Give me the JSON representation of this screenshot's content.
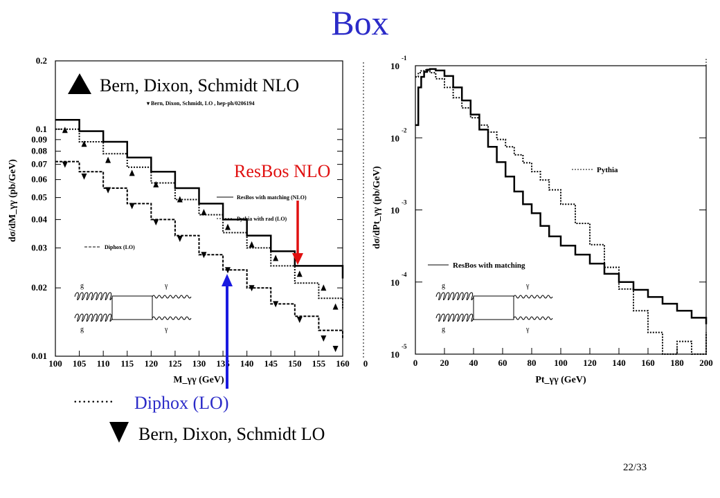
{
  "slide": {
    "title": "Box",
    "page_number": "22/33"
  },
  "annotations": {
    "bds_nlo": "Bern, Dixon, Schmidt NLO",
    "bds_lo": "Bern, Dixon, Schmidt LO",
    "resbos_nlo": "ResBos NLO",
    "diphox_lo": "Diphox (LO)",
    "dotted_marker": ".........",
    "colors": {
      "title": "#2b2bc8",
      "red_arrow": "#e01010",
      "blue_arrow": "#1a1ae0"
    }
  },
  "feynman_diagram": {
    "gluon_label": "g",
    "photon_label": "γ"
  },
  "chart_data": [
    {
      "type": "line",
      "xlabel": "M_γγ (GeV)",
      "ylabel": "dσ/dM_γγ (pb/GeV)",
      "y_scale": "log",
      "xlim": [
        100,
        160
      ],
      "ylim": [
        0.01,
        0.2
      ],
      "x_ticks": [
        100,
        105,
        110,
        115,
        120,
        125,
        130,
        135,
        140,
        145,
        150,
        155,
        160
      ],
      "y_ticks": [
        {
          "value": 0.2,
          "label": "0.2"
        },
        {
          "value": 0.1,
          "label": "0.1"
        },
        {
          "value": 0.09,
          "label": "0.09"
        },
        {
          "value": 0.08,
          "label": "0.08"
        },
        {
          "value": 0.07,
          "label": "0.07"
        },
        {
          "value": 0.06,
          "label": "0.06"
        },
        {
          "value": 0.05,
          "label": "0.05"
        },
        {
          "value": 0.04,
          "label": "0.04"
        },
        {
          "value": 0.03,
          "label": "0.03"
        },
        {
          "value": 0.02,
          "label": "0.02"
        },
        {
          "value": 0.01,
          "label": "0.01"
        }
      ],
      "legend": [
        "▾ Bern, Dixon, Schmidt, LO   , hep-ph/0206194",
        "ResBos with matching (NLO)",
        "Pythia with rad (LO)",
        "Diphox (LO)"
      ],
      "series": [
        {
          "name": "ResBos with matching (NLO)",
          "style": "solid-step",
          "x": [
            100,
            105,
            110,
            115,
            120,
            125,
            130,
            135,
            140,
            145,
            150,
            155,
            160
          ],
          "y": [
            0.11,
            0.098,
            0.088,
            0.075,
            0.065,
            0.055,
            0.047,
            0.04,
            0.034,
            0.029,
            0.025,
            0.025,
            0.022
          ]
        },
        {
          "name": "Pythia with rad (LO)",
          "style": "dotted-step",
          "x": [
            100,
            105,
            110,
            115,
            120,
            125,
            130,
            135,
            140,
            145,
            150,
            155,
            160
          ],
          "y": [
            0.1,
            0.088,
            0.078,
            0.068,
            0.058,
            0.049,
            0.042,
            0.035,
            0.03,
            0.025,
            0.021,
            0.018,
            0.016
          ]
        },
        {
          "name": "Diphox (LO)",
          "style": "dashed-step",
          "x": [
            100,
            105,
            110,
            115,
            120,
            125,
            130,
            135,
            140,
            145,
            150,
            155,
            160
          ],
          "y": [
            0.072,
            0.065,
            0.055,
            0.047,
            0.04,
            0.034,
            0.028,
            0.024,
            0.02,
            0.017,
            0.015,
            0.013,
            0.012
          ]
        },
        {
          "name": "Bern, Dixon, Schmidt NLO",
          "style": "triangle-up",
          "x": [
            102,
            106,
            111,
            116,
            121,
            126,
            131,
            136,
            141,
            146,
            151,
            156,
            158.5
          ],
          "y": [
            0.099,
            0.086,
            0.073,
            0.064,
            0.057,
            0.049,
            0.043,
            0.037,
            0.031,
            0.027,
            0.023,
            0.02,
            0.0165
          ]
        },
        {
          "name": "Bern, Dixon, Schmidt LO",
          "style": "triangle-down",
          "x": [
            102,
            106,
            111,
            116,
            121,
            126,
            131,
            136,
            141,
            146,
            151,
            156,
            158.5
          ],
          "y": [
            0.07,
            0.062,
            0.054,
            0.046,
            0.039,
            0.033,
            0.028,
            0.024,
            0.02,
            0.017,
            0.0145,
            0.012,
            0.0108
          ]
        }
      ]
    },
    {
      "type": "line",
      "xlabel": "Pt_γγ (GeV)",
      "ylabel": "dσ/dPt_γγ (pb/GeV)",
      "y_scale": "log",
      "xlim": [
        0,
        200
      ],
      "ylim": [
        1e-05,
        0.1
      ],
      "x_ticks": [
        0,
        20,
        40,
        60,
        80,
        100,
        120,
        140,
        160,
        180,
        200
      ],
      "y_ticks": [
        {
          "value": 0.1,
          "base": "10",
          "exp": "-1"
        },
        {
          "value": 0.01,
          "base": "10",
          "exp": "-2"
        },
        {
          "value": 0.001,
          "base": "10",
          "exp": "-3"
        },
        {
          "value": 0.0001,
          "base": "10",
          "exp": "-4"
        },
        {
          "value": 1e-05,
          "base": "10",
          "exp": "-5"
        }
      ],
      "legend": [
        "Pythia",
        "ResBos with matching"
      ],
      "series": [
        {
          "name": "ResBos with matching",
          "style": "solid-step",
          "x": [
            0,
            2,
            4,
            6,
            8,
            10,
            14,
            20,
            26,
            32,
            38,
            44,
            50,
            56,
            62,
            68,
            74,
            80,
            86,
            92,
            100,
            110,
            120,
            130,
            140,
            150,
            160,
            170,
            180,
            190,
            200
          ],
          "y": [
            0.015,
            0.05,
            0.07,
            0.082,
            0.088,
            0.09,
            0.086,
            0.072,
            0.05,
            0.033,
            0.021,
            0.013,
            0.0075,
            0.0046,
            0.0029,
            0.0018,
            0.0012,
            0.0009,
            0.0006,
            0.00043,
            0.00032,
            0.00024,
            0.00018,
            0.00013,
            0.0001,
            7.8e-05,
            6.2e-05,
            5e-05,
            4e-05,
            3.2e-05,
            2.6e-05
          ]
        },
        {
          "name": "Pythia",
          "style": "dotted-step",
          "x": [
            0,
            2,
            4,
            6,
            8,
            10,
            14,
            20,
            26,
            32,
            38,
            44,
            50,
            56,
            62,
            68,
            74,
            80,
            86,
            92,
            100,
            110,
            120,
            130,
            140,
            150,
            160,
            170,
            180,
            190,
            200
          ],
          "y": [
            0.07,
            0.08,
            0.085,
            0.087,
            0.085,
            0.08,
            0.066,
            0.05,
            0.036,
            0.026,
            0.019,
            0.015,
            0.012,
            0.0095,
            0.0075,
            0.0058,
            0.0045,
            0.0034,
            0.0026,
            0.0019,
            0.0012,
            0.00065,
            0.00033,
            0.00016,
            8e-05,
            4e-05,
            2e-05,
            1e-05,
            1.5e-05,
            1e-05,
            2e-05
          ]
        }
      ]
    }
  ]
}
